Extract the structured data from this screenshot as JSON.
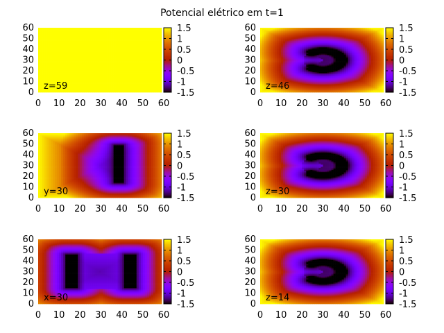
{
  "chart_data": {
    "type": "heatmap",
    "title": "Potencial elétrico em t=1",
    "colorbar": {
      "range": [
        -1.5,
        1.5
      ],
      "ticks": [
        "1.5",
        "1",
        "0.5",
        "0",
        "-0.5",
        "-1",
        "-1.5"
      ],
      "palette": "black-blue-purple-red-orange-yellow"
    },
    "panels": [
      {
        "label": "z=59",
        "xlim": [
          0,
          59
        ],
        "ylim": [
          0,
          60
        ],
        "xticks": [
          "0",
          "10",
          "20",
          "30",
          "40",
          "50",
          "60"
        ],
        "yticks": [
          "0",
          "10",
          "20",
          "30",
          "40",
          "50",
          "60"
        ],
        "field": "uniform",
        "base": 1.5
      },
      {
        "label": "z=46",
        "xlim": [
          0,
          59
        ],
        "ylim": [
          0,
          60
        ],
        "xticks": [
          "0",
          "10",
          "20",
          "30",
          "40",
          "50",
          "60"
        ],
        "yticks": [
          "0",
          "10",
          "20",
          "30",
          "40",
          "50",
          "60"
        ],
        "field": "ring",
        "center": [
          30,
          30
        ],
        "radius": 9.5,
        "gap_side": "left"
      },
      {
        "label": "y=30",
        "xlim": [
          0,
          59
        ],
        "ylim": [
          0,
          60
        ],
        "xticks": [
          "0",
          "10",
          "20",
          "30",
          "40",
          "50",
          "60"
        ],
        "yticks": [
          "0",
          "10",
          "20",
          "30",
          "40",
          "50",
          "60"
        ],
        "field": "bar",
        "bars": [
          {
            "x": [
              36.5,
              40.5
            ],
            "y": [
              14,
              49
            ]
          }
        ]
      },
      {
        "label": "z=30",
        "xlim": [
          0,
          59
        ],
        "ylim": [
          0,
          60
        ],
        "xticks": [
          "0",
          "10",
          "20",
          "30",
          "40",
          "50",
          "60"
        ],
        "yticks": [
          "0",
          "10",
          "20",
          "30",
          "40",
          "50",
          "60"
        ],
        "field": "ring",
        "center": [
          30,
          30
        ],
        "radius": 10,
        "gap_side": "left"
      },
      {
        "label": "x=30",
        "xlim": [
          0,
          59
        ],
        "ylim": [
          0,
          60
        ],
        "xticks": [
          "0",
          "10",
          "20",
          "30",
          "40",
          "50",
          "60"
        ],
        "yticks": [
          "0",
          "10",
          "20",
          "30",
          "40",
          "50",
          "60"
        ],
        "field": "bar",
        "bars": [
          {
            "x": [
              13.5,
              18.5
            ],
            "y": [
              15,
              46
            ]
          },
          {
            "x": [
              41.5,
              46.5
            ],
            "y": [
              15,
              46
            ]
          }
        ]
      },
      {
        "label": "z=14",
        "xlim": [
          0,
          59
        ],
        "ylim": [
          0,
          60
        ],
        "xticks": [
          "0",
          "10",
          "20",
          "30",
          "40",
          "50",
          "60"
        ],
        "yticks": [
          "0",
          "10",
          "20",
          "30",
          "40",
          "50",
          "60"
        ],
        "field": "ring",
        "center": [
          30,
          30
        ],
        "radius": 9.5,
        "gap_side": "left"
      }
    ]
  }
}
